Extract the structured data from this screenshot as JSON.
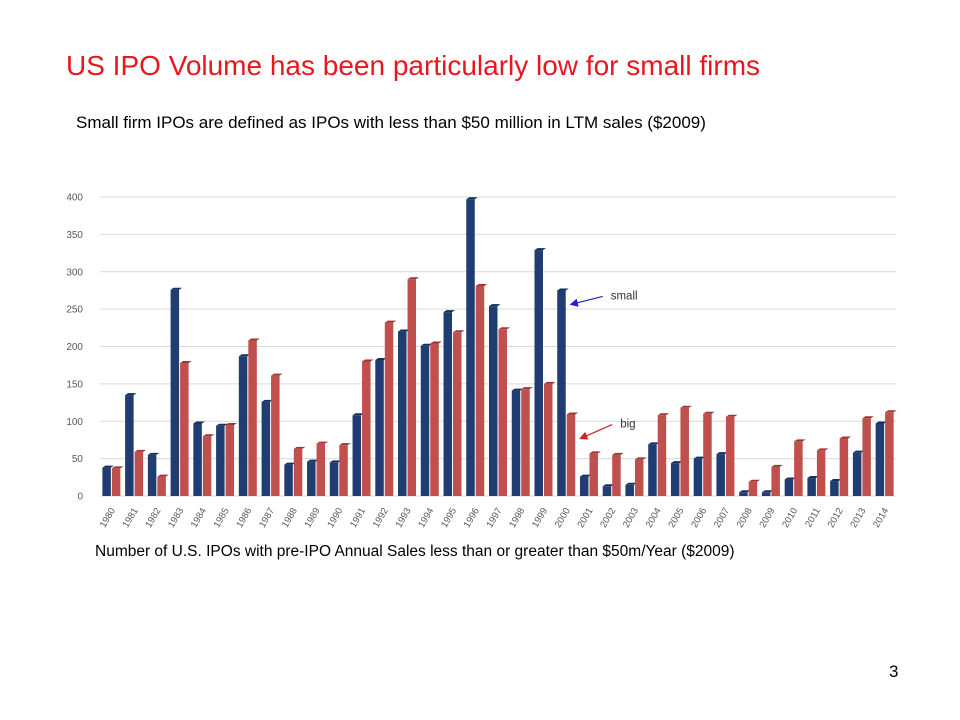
{
  "slide": {
    "title": "US IPO Volume has been particularly low for small firms",
    "subtitle": "Small firm IPOs are defined as IPOs with less than $50 million in LTM sales ($2009)",
    "caption": "Number of U.S. IPOs with pre-IPO Annual Sales less than or greater than $50m/Year ($2009)",
    "page_number": "3"
  },
  "colors": {
    "title": "#e8171f",
    "small_bar": "#1f3d73",
    "small_bar_side": "#16305c",
    "big_bar": "#c0504d",
    "big_bar_side": "#9a3836",
    "gridline": "#d9d9d9",
    "axis_text": "#595959",
    "small_arrow": "#2222cc",
    "big_arrow": "#cc2222"
  },
  "chart_data": {
    "type": "bar",
    "categories": [
      "1980",
      "1981",
      "1982",
      "1983",
      "1984",
      "1985",
      "1986",
      "1987",
      "1988",
      "1989",
      "1990",
      "1991",
      "1992",
      "1993",
      "1994",
      "1995",
      "1996",
      "1997",
      "1998",
      "1999",
      "2000",
      "2001",
      "2002",
      "2003",
      "2004",
      "2005",
      "2006",
      "2007",
      "2008",
      "2009",
      "2010",
      "2011",
      "2012",
      "2013",
      "2014"
    ],
    "series": [
      {
        "name": "small",
        "values": [
          38,
          135,
          55,
          276,
          97,
          94,
          187,
          126,
          42,
          46,
          45,
          108,
          182,
          220,
          201,
          246,
          397,
          254,
          141,
          329,
          275,
          26,
          13,
          15,
          69,
          44,
          50,
          56,
          5,
          5,
          22,
          24,
          20,
          58,
          97
        ]
      },
      {
        "name": "big",
        "values": [
          37,
          59,
          26,
          178,
          80,
          95,
          208,
          161,
          63,
          70,
          68,
          180,
          232,
          290,
          204,
          219,
          281,
          223,
          143,
          150,
          109,
          57,
          55,
          49,
          108,
          118,
          110,
          106,
          19,
          39,
          73,
          61,
          77,
          104,
          112
        ]
      }
    ],
    "ylim": [
      0,
      400
    ],
    "yticks": [
      0,
      50,
      100,
      150,
      200,
      250,
      300,
      350,
      400
    ],
    "grid": true,
    "annotations": [
      {
        "text": "small",
        "series": "small",
        "category": "2000"
      },
      {
        "text": "big",
        "series": "big",
        "category": "2000"
      }
    ]
  }
}
